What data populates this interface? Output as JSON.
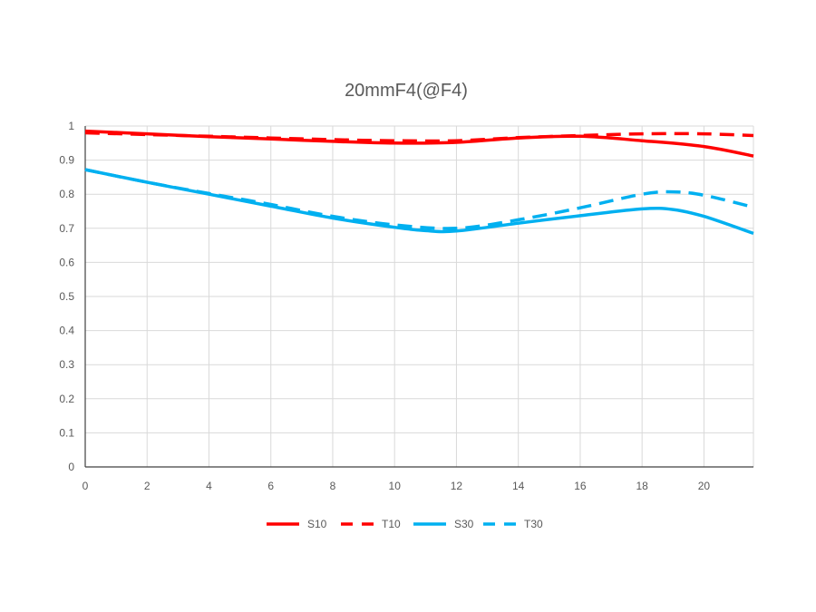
{
  "chart_data": {
    "type": "line",
    "title": "20mmF4(@F4)",
    "xlabel": "",
    "ylabel": "",
    "xlim": [
      0,
      21.6
    ],
    "ylim": [
      0,
      1
    ],
    "x_ticks": [
      "0",
      "2",
      "4",
      "6",
      "8",
      "10",
      "12",
      "14",
      "16",
      "18",
      "20"
    ],
    "y_ticks": [
      "0",
      "0.1",
      "0.2",
      "0.3",
      "0.4",
      "0.5",
      "0.6",
      "0.7",
      "0.8",
      "0.9",
      "1"
    ],
    "grid": true,
    "legend_position": "bottom",
    "series": [
      {
        "name": "S10",
        "color": "#ff0000",
        "dash": "solid",
        "points": [
          [
            0,
            0.985
          ],
          [
            2,
            0.977
          ],
          [
            4,
            0.969
          ],
          [
            6,
            0.962
          ],
          [
            8,
            0.955
          ],
          [
            10,
            0.95
          ],
          [
            12,
            0.952
          ],
          [
            14,
            0.965
          ],
          [
            16,
            0.97
          ],
          [
            18,
            0.957
          ],
          [
            20,
            0.94
          ],
          [
            21.6,
            0.912
          ]
        ]
      },
      {
        "name": "T10",
        "color": "#ff0000",
        "dash": "dashed",
        "points": [
          [
            0,
            0.98
          ],
          [
            2,
            0.975
          ],
          [
            4,
            0.97
          ],
          [
            6,
            0.965
          ],
          [
            8,
            0.96
          ],
          [
            10,
            0.957
          ],
          [
            12,
            0.957
          ],
          [
            14,
            0.966
          ],
          [
            16,
            0.972
          ],
          [
            18,
            0.977
          ],
          [
            20,
            0.977
          ],
          [
            21.6,
            0.972
          ]
        ]
      },
      {
        "name": "S30",
        "color": "#00b0f0",
        "dash": "solid",
        "points": [
          [
            0,
            0.872
          ],
          [
            2,
            0.835
          ],
          [
            4,
            0.8
          ],
          [
            6,
            0.765
          ],
          [
            8,
            0.73
          ],
          [
            10,
            0.703
          ],
          [
            11,
            0.693
          ],
          [
            12,
            0.692
          ],
          [
            14,
            0.715
          ],
          [
            16,
            0.737
          ],
          [
            18,
            0.757
          ],
          [
            19,
            0.755
          ],
          [
            20,
            0.735
          ],
          [
            21.6,
            0.685
          ]
        ]
      },
      {
        "name": "T30",
        "color": "#00b0f0",
        "dash": "dashed",
        "points": [
          [
            0,
            0.872
          ],
          [
            2,
            0.835
          ],
          [
            4,
            0.802
          ],
          [
            6,
            0.77
          ],
          [
            8,
            0.735
          ],
          [
            10,
            0.71
          ],
          [
            12,
            0.7
          ],
          [
            14,
            0.725
          ],
          [
            16,
            0.76
          ],
          [
            18,
            0.8
          ],
          [
            19,
            0.807
          ],
          [
            20,
            0.797
          ],
          [
            21.6,
            0.762
          ]
        ]
      }
    ]
  }
}
